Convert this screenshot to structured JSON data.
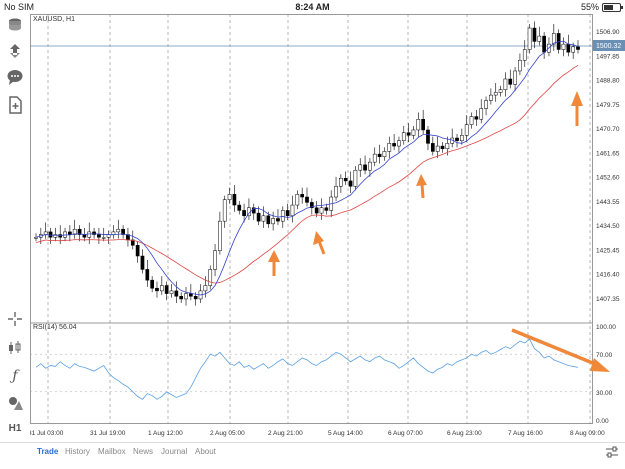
{
  "status": {
    "carrier": "No SIM",
    "time": "8:24 AM",
    "battery": "55%"
  },
  "chart": {
    "symbol": "XAUUSD, H1",
    "price_labels": [
      "1506.90",
      "1497.85",
      "1488.80",
      "1479.75",
      "1470.70",
      "1461.65",
      "1452.60",
      "1443.55",
      "1434.50",
      "1425.45",
      "1416.40",
      "1407.35"
    ],
    "current_price": "1500.32",
    "time_labels": [
      "31 Jul 03:00",
      "31 Jul 19:00",
      "1 Aug 12:00",
      "2 Aug 05:00",
      "2 Aug 21:00",
      "5 Aug 14:00",
      "6 Aug 07:00",
      "6 Aug 23:00",
      "7 Aug 16:00",
      "8 Aug 09:00"
    ],
    "rsi_label": "RSI(14) 56.04",
    "rsi_levels": [
      "100.00",
      "70.00",
      "30.00",
      "0.00"
    ],
    "colors": {
      "up": "#ffffff",
      "down": "#000000",
      "ma_fast": "#3344cc",
      "ma_slow": "#e04444",
      "rsi": "#5aa0e0",
      "arrow": "#f0883a",
      "price_tag": "#6a8fb5"
    }
  },
  "toolbar_icons": [
    "coins-icon",
    "new-order-icon",
    "chat-icon",
    "document-icon",
    "crosshair-icon",
    "candles-icon",
    "indicator-f-icon",
    "objects-icon",
    "timeframe-h1"
  ],
  "tabs": [
    {
      "label": "Trade",
      "active": true
    },
    {
      "label": "History",
      "active": false
    },
    {
      "label": "Mailbox",
      "active": false
    },
    {
      "label": "News",
      "active": false
    },
    {
      "label": "Journal",
      "active": false
    },
    {
      "label": "About",
      "active": false
    }
  ]
}
